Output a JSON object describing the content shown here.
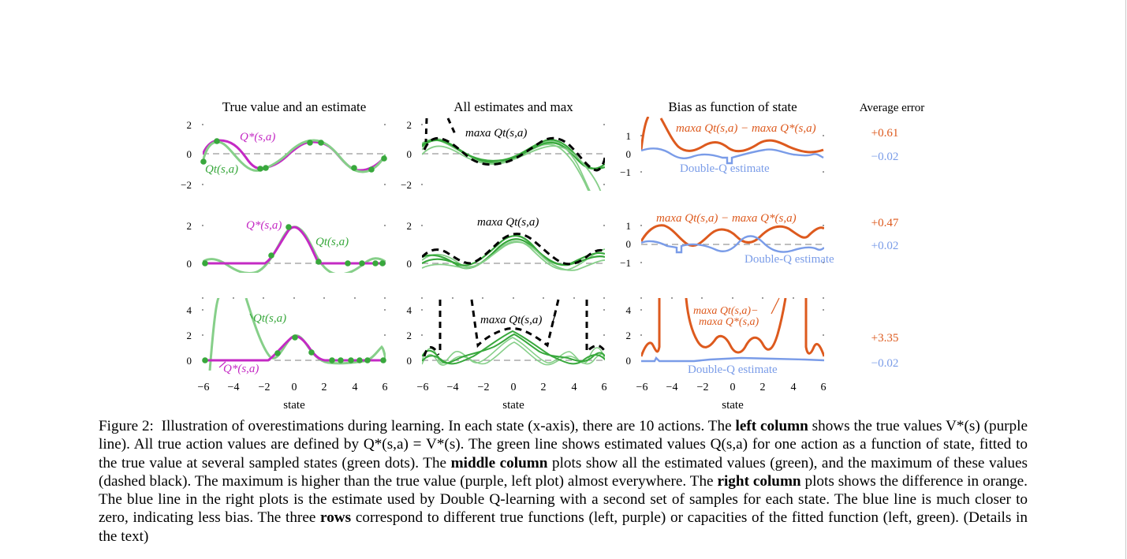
{
  "columns": {
    "left_title": "True value and an estimate",
    "middle_title": "All estimates and max",
    "right_title": "Bias as function of state",
    "error_title": "Average error"
  },
  "axes": {
    "xlabel": "state",
    "xticks": [
      "−6",
      "−4",
      "−2",
      "0",
      "2",
      "4",
      "6"
    ]
  },
  "rows": [
    {
      "yticks_left": [
        "2",
        "0",
        "−2"
      ],
      "yticks_mid": [
        "2",
        "0",
        "−2"
      ],
      "yticks_right": [
        "1",
        "0",
        "−1"
      ],
      "label_qstar": "Q*(s,a)",
      "label_qt": "Qt(s,a)",
      "label_max": "maxa Qt(s,a)",
      "label_bias": "maxa Qt(s,a) − maxa Q*(s,a)",
      "label_double": "Double-Q estimate",
      "error_single": "+0.61",
      "error_double": "−0.02"
    },
    {
      "yticks_left": [
        "2",
        "0"
      ],
      "yticks_mid": [
        "2",
        "0"
      ],
      "yticks_right": [
        "1",
        "0",
        "−1"
      ],
      "label_qstar": "Q*(s,a)",
      "label_qt": "Qt(s,a)",
      "label_max": "maxa Qt(s,a)",
      "label_bias": "maxa Qt(s,a) − maxa Q*(s,a)",
      "label_double": "Double-Q estimate",
      "error_single": "+0.47",
      "error_double": "+0.02"
    },
    {
      "yticks_left": [
        "4",
        "2",
        "0"
      ],
      "yticks_mid": [
        "4",
        "2",
        "0"
      ],
      "yticks_right": [
        "4",
        "2",
        "0"
      ],
      "label_qstar": "Q*(s,a)",
      "label_qt": "Qt(s,a)",
      "label_max": "maxa Qt(s,a)",
      "label_bias_line1": "maxa Qt(s,a)−",
      "label_bias_line2": "maxa Q*(s,a)",
      "label_double": "Double-Q estimate",
      "error_single": "+3.35",
      "error_double": "−0.02"
    }
  ],
  "caption": {
    "figure_label": "Figure 2:",
    "part1": "Illustration of overestimations during learning. In each state (x-axis), there are 10 actions. The ",
    "left_column": "left column",
    "part2": " shows the true values V*(s) (purple line). All true action values are defined by Q*(s,a) = V*(s). The green line shows estimated values Q(s,a) for one action as a function of state, fitted to the true value at several sampled states (green dots). The ",
    "middle_column": "middle column",
    "part3": " plots show all the estimated values (green), and the maximum of these values (dashed black). The maximum is higher than the true value (purple, left plot) almost everywhere. The ",
    "right_column": "right column",
    "part4": " plots shows the difference in orange. The blue line in the right plots is the estimate used by Double Q-learning with a second set of samples for each state. The blue line is much closer to zero, indicating less bias. The three ",
    "rows_word": "rows",
    "part5": " correspond to different true functions (left, purple) or capacities of the fitted function (left, green). (Details in the text)"
  },
  "colors": {
    "true_value": "#c42ac4",
    "estimate": "#38a83c",
    "estimate_light": "#86cf89",
    "max": "#000000",
    "bias": "#dd5a1e",
    "double_q": "#7a9ce8",
    "zero_line": "#999999"
  },
  "chart_data": [
    {
      "type": "line",
      "panel": "row1-left",
      "title": "True value and an estimate",
      "xlabel": "",
      "ylabel": "",
      "xlim": [
        -6,
        6
      ],
      "ylim": [
        -2,
        2
      ],
      "series": [
        {
          "name": "Q*(s,a)",
          "x": [
            -6,
            -5,
            -4,
            -3,
            -2,
            -1,
            0,
            1,
            2,
            3,
            4,
            5,
            6
          ],
          "values": [
            0,
            0.8,
            0.9,
            0.5,
            -0.6,
            -0.8,
            -0.1,
            0.8,
            0.9,
            0.5,
            -0.6,
            -0.9,
            0
          ]
        },
        {
          "name": "Qt(s,a)",
          "x": [
            -6,
            -5,
            -4,
            -3,
            -2,
            -1,
            0,
            1,
            2,
            3,
            4,
            5,
            6
          ],
          "values": [
            0.1,
            0.8,
            0.8,
            0.1,
            -1.0,
            -0.7,
            0.1,
            0.8,
            0.8,
            0.4,
            -0.5,
            -1.2,
            0.1
          ]
        }
      ]
    },
    {
      "type": "line",
      "panel": "row1-middle",
      "title": "All estimates and max",
      "xlim": [
        -6,
        6
      ],
      "ylim": [
        -2,
        2
      ],
      "series": [
        {
          "name": "maxa Qt(s,a)",
          "x": [
            -6,
            -4,
            -2,
            0,
            2,
            4,
            6
          ],
          "values": [
            0.8,
            1.5,
            0.2,
            -0.3,
            0.7,
            1.2,
            -0.6
          ]
        }
      ]
    },
    {
      "type": "line",
      "panel": "row1-right",
      "title": "Bias as function of state",
      "xlim": [
        -6,
        6
      ],
      "ylim": [
        -1,
        1
      ],
      "series": [
        {
          "name": "maxa Qt(s,a) − maxa Q*(s,a)",
          "x": [
            -6,
            -4,
            -2,
            0,
            2,
            4,
            6
          ],
          "values": [
            1.1,
            0.4,
            0.6,
            0.5,
            0.6,
            0.3,
            0.1
          ]
        },
        {
          "name": "Double-Q estimate",
          "x": [
            -6,
            -4,
            -2,
            0,
            2,
            4,
            6
          ],
          "values": [
            0.1,
            -0.1,
            0.1,
            -0.1,
            0.1,
            -0.2,
            0
          ]
        }
      ]
    },
    {
      "type": "bar",
      "panel": "row1-error",
      "title": "Average error",
      "categories": [
        "maxa Qt(s,a) − maxa Q*(s,a)",
        "Double-Q estimate"
      ],
      "values": [
        0.61,
        -0.02
      ]
    },
    {
      "type": "line",
      "panel": "row2-left",
      "xlim": [
        -6,
        6
      ],
      "ylim": [
        0,
        2
      ],
      "series": [
        {
          "name": "Q*(s,a)",
          "x": [
            -6,
            -4,
            -2,
            -1,
            0,
            1,
            2,
            4,
            6
          ],
          "values": [
            0,
            0,
            0,
            0.7,
            1.4,
            0.8,
            0,
            0,
            0
          ]
        },
        {
          "name": "Qt(s,a)",
          "x": [
            -6,
            -4,
            -2,
            -1,
            0,
            1,
            2,
            4,
            6
          ],
          "values": [
            0.1,
            -0.4,
            0.1,
            0.8,
            1.5,
            0.9,
            0.2,
            -0.3,
            0.3
          ]
        }
      ]
    },
    {
      "type": "line",
      "panel": "row2-middle",
      "xlim": [
        -6,
        6
      ],
      "ylim": [
        0,
        2
      ],
      "series": [
        {
          "name": "maxa Qt(s,a)",
          "x": [
            -6,
            -4,
            -2,
            0,
            2,
            4,
            6
          ],
          "values": [
            0.2,
            0.6,
            0.3,
            1.1,
            0.3,
            0.6,
            0.2
          ]
        }
      ]
    },
    {
      "type": "line",
      "panel": "row2-right",
      "xlim": [
        -6,
        6
      ],
      "ylim": [
        -1,
        1
      ],
      "series": [
        {
          "name": "maxa Qt(s,a) − maxa Q*(s,a)",
          "x": [
            -6,
            -4,
            -2,
            0,
            2,
            4,
            6
          ],
          "values": [
            0.3,
            0.6,
            0.3,
            0.1,
            0.6,
            0.2,
            0.6
          ]
        },
        {
          "name": "Double-Q estimate",
          "x": [
            -6,
            -4,
            -2,
            0,
            2,
            4,
            6
          ],
          "values": [
            0,
            0.3,
            -0.2,
            -0.1,
            0.3,
            -0.3,
            0
          ]
        }
      ]
    },
    {
      "type": "bar",
      "panel": "row2-error",
      "categories": [
        "maxa Qt(s,a) − maxa Q*(s,a)",
        "Double-Q estimate"
      ],
      "values": [
        0.47,
        0.02
      ]
    },
    {
      "type": "line",
      "panel": "row3-left",
      "xlim": [
        -6,
        6
      ],
      "ylim": [
        0,
        4
      ],
      "series": [
        {
          "name": "Q*(s,a)",
          "x": [
            -6,
            -4,
            -2,
            -1,
            0,
            1,
            2,
            4,
            6
          ],
          "values": [
            0,
            0,
            0,
            0.5,
            1.2,
            0.6,
            0,
            0,
            0
          ]
        },
        {
          "name": "Qt(s,a)",
          "x": [
            -6,
            -5,
            -4,
            -3,
            -2,
            0,
            2,
            4,
            6
          ],
          "values": [
            0,
            5,
            3,
            1,
            0.2,
            1.2,
            0.1,
            0.1,
            0.4
          ]
        }
      ]
    },
    {
      "type": "line",
      "panel": "row3-middle",
      "xlim": [
        -6,
        6
      ],
      "ylim": [
        0,
        4
      ],
      "series": [
        {
          "name": "maxa Qt(s,a)",
          "x": [
            -6,
            -4,
            -2,
            0,
            2,
            4,
            6
          ],
          "values": [
            0.5,
            5,
            1.5,
            1.6,
            1.5,
            5,
            0.5
          ]
        }
      ]
    },
    {
      "type": "line",
      "panel": "row3-right",
      "xlim": [
        -6,
        6
      ],
      "ylim": [
        0,
        4
      ],
      "series": [
        {
          "name": "maxa Qt(s,a)−maxa Q*(s,a)",
          "x": [
            -6,
            -4,
            -2,
            0,
            2,
            4,
            6
          ],
          "values": [
            0.5,
            5,
            1.0,
            1.3,
            1.0,
            5,
            0.5
          ]
        },
        {
          "name": "Double-Q estimate",
          "x": [
            -6,
            -4,
            -2,
            0,
            2,
            4,
            6
          ],
          "values": [
            0,
            0,
            0.1,
            0,
            0.1,
            0,
            0
          ]
        }
      ]
    },
    {
      "type": "bar",
      "panel": "row3-error",
      "categories": [
        "maxa Qt(s,a)−maxa Q*(s,a)",
        "Double-Q estimate"
      ],
      "values": [
        3.35,
        -0.02
      ]
    }
  ]
}
